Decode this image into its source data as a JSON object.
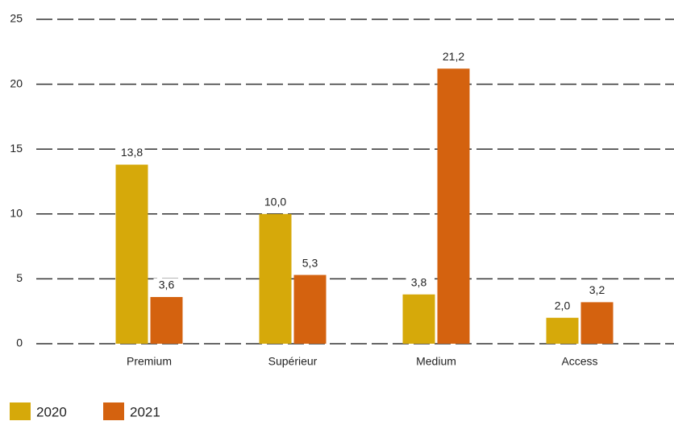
{
  "chart_data": {
    "type": "bar",
    "categories": [
      "Premium",
      "Supérieur",
      "Medium",
      "Access"
    ],
    "series": [
      {
        "name": "2020",
        "color": "#d6a90a",
        "values": [
          13.8,
          10.0,
          3.8,
          2.0
        ],
        "value_labels": [
          "13,8",
          "10,0",
          "3,8",
          "2,0"
        ]
      },
      {
        "name": "2021",
        "color": "#d4620f",
        "values": [
          3.6,
          5.3,
          21.2,
          3.2
        ],
        "value_labels": [
          "3,6",
          "5,3",
          "21,2",
          "3,2"
        ]
      }
    ],
    "ylim": [
      0,
      25
    ],
    "yticks": [
      0,
      5,
      10,
      15,
      20,
      25
    ],
    "grid": true,
    "legend": "bottom-left"
  }
}
